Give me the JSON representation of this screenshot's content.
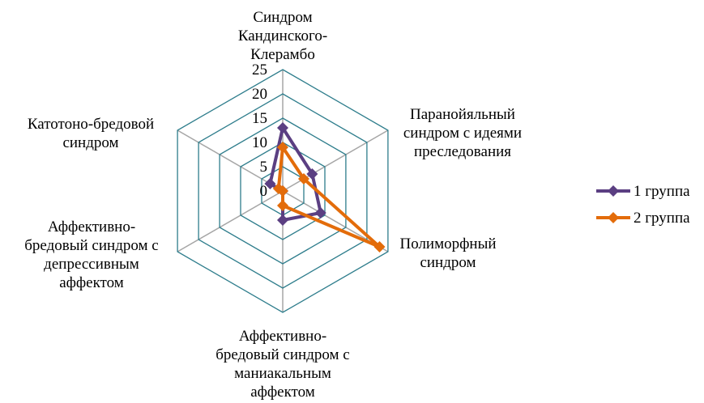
{
  "chart_data": {
    "type": "radar",
    "categories": [
      [
        "Синдром",
        "Кандинского-",
        "Клерамбо"
      ],
      [
        "Паранойяльный",
        "синдром с идеями",
        "преследования"
      ],
      [
        "Полиморфный",
        "синдром"
      ],
      [
        "Аффективно-",
        "бредовый синдром с",
        "маниакальным",
        "аффектом"
      ],
      [
        "Аффективно-",
        "бредовый синдром с",
        "депрессивным",
        "аффектом"
      ],
      [
        "Катотоно-бредовой",
        "синдром"
      ]
    ],
    "ticks": [
      0,
      5,
      10,
      15,
      20,
      25
    ],
    "rmax": 25,
    "series": [
      {
        "name": "1 группа",
        "values": [
          13,
          7,
          9,
          6,
          0,
          3
        ],
        "color": "#5b3f82",
        "marker": "diamond"
      },
      {
        "name": "2 группа",
        "values": [
          9,
          5,
          23,
          3,
          0,
          1
        ],
        "color": "#e36c0a",
        "marker": "diamond"
      }
    ],
    "grid": true,
    "grid_color": "#2e7d8c",
    "spoke_color": "#a6a6a6",
    "legend_position": "right"
  }
}
